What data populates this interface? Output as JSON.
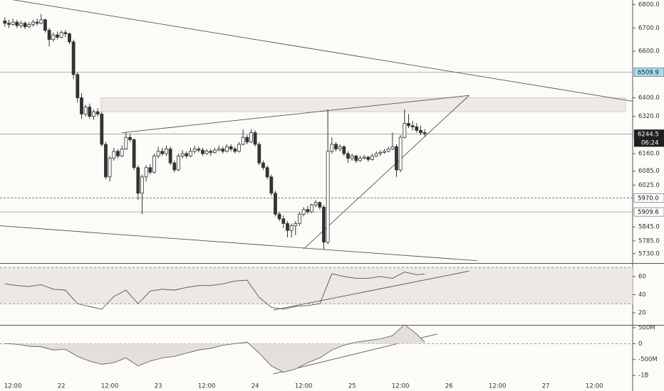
{
  "chart_data": [
    {
      "type": "candlestick",
      "xlim": [
        -3.2,
        153.5
      ],
      "xticks": [
        {
          "value": 0,
          "label": "12:00"
        },
        {
          "value": 12,
          "label": "22"
        },
        {
          "value": 24,
          "label": "12:00"
        },
        {
          "value": 36,
          "label": "23"
        },
        {
          "value": 48,
          "label": "12:00"
        },
        {
          "value": 60,
          "label": "24"
        },
        {
          "value": 72,
          "label": "12:00"
        },
        {
          "value": 84,
          "label": "25"
        },
        {
          "value": 96,
          "label": "12:00"
        },
        {
          "value": 108,
          "label": "26"
        },
        {
          "value": 120,
          "label": "12:00"
        },
        {
          "value": 132,
          "label": "27"
        },
        {
          "value": 144,
          "label": "12:00"
        }
      ],
      "ylim": [
        5690,
        6820
      ],
      "yticks": [
        {
          "value": 6800,
          "label": "6800.0"
        },
        {
          "value": 6700,
          "label": "6700.0"
        },
        {
          "value": 6600,
          "label": "6600.0"
        },
        {
          "value": 6400,
          "label": "6400.0"
        },
        {
          "value": 6320,
          "label": "6320.0"
        },
        {
          "value": 6160,
          "label": "6160.0"
        },
        {
          "value": 6085,
          "label": "6085.0"
        },
        {
          "value": 6025,
          "label": "6025.0"
        },
        {
          "value": 5845,
          "label": "5845.0"
        },
        {
          "value": 5785,
          "label": "5785.0"
        },
        {
          "value": 5730,
          "label": "5730.0"
        }
      ],
      "up_color": "#ffffff",
      "down_color": "#333333",
      "x": [
        -2,
        -1,
        0,
        1,
        2,
        3,
        4,
        5,
        6,
        7,
        8,
        9,
        10,
        11,
        12,
        13,
        14,
        15,
        16,
        17,
        18,
        19,
        20,
        21,
        22,
        23,
        24,
        25,
        26,
        27,
        28,
        29,
        30,
        31,
        32,
        33,
        34,
        35,
        36,
        37,
        38,
        39,
        40,
        41,
        42,
        43,
        44,
        45,
        46,
        47,
        48,
        49,
        50,
        51,
        52,
        53,
        54,
        55,
        56,
        57,
        58,
        59,
        60,
        61,
        62,
        63,
        64,
        65,
        66,
        67,
        68,
        69,
        70,
        71,
        72,
        73,
        74,
        75,
        76,
        77,
        78,
        79,
        80,
        81,
        82,
        83,
        84,
        85,
        86,
        87,
        88,
        89,
        90,
        91,
        92,
        93,
        94,
        95,
        96,
        97,
        98,
        99,
        100,
        101,
        102
      ],
      "ohlc": [
        [
          6730,
          6745,
          6705,
          6720
        ],
        [
          6720,
          6735,
          6700,
          6715
        ],
        [
          6715,
          6740,
          6710,
          6725
        ],
        [
          6725,
          6735,
          6700,
          6710
        ],
        [
          6710,
          6730,
          6700,
          6720
        ],
        [
          6720,
          6728,
          6695,
          6705
        ],
        [
          6705,
          6725,
          6700,
          6715
        ],
        [
          6715,
          6735,
          6705,
          6725
        ],
        [
          6725,
          6740,
          6710,
          6720
        ],
        [
          6720,
          6760,
          6715,
          6735
        ],
        [
          6735,
          6740,
          6680,
          6690
        ],
        [
          6690,
          6700,
          6620,
          6650
        ],
        [
          6650,
          6680,
          6640,
          6670
        ],
        [
          6670,
          6685,
          6650,
          6660
        ],
        [
          6660,
          6690,
          6655,
          6680
        ],
        [
          6680,
          6690,
          6660,
          6675
        ],
        [
          6675,
          6680,
          6630,
          6640
        ],
        [
          6640,
          6650,
          6480,
          6500
        ],
        [
          6500,
          6510,
          6380,
          6400
        ],
        [
          6400,
          6420,
          6310,
          6330
        ],
        [
          6330,
          6370,
          6320,
          6360
        ],
        [
          6360,
          6375,
          6310,
          6320
        ],
        [
          6320,
          6350,
          6305,
          6340
        ],
        [
          6340,
          6355,
          6320,
          6330
        ],
        [
          6330,
          6340,
          6190,
          6200
        ],
        [
          6200,
          6210,
          6050,
          6060
        ],
        [
          6060,
          6150,
          6040,
          6140
        ],
        [
          6140,
          6185,
          6130,
          6170
        ],
        [
          6170,
          6180,
          6140,
          6150
        ],
        [
          6150,
          6195,
          6145,
          6180
        ],
        [
          6180,
          6250,
          6175,
          6230
        ],
        [
          6230,
          6245,
          6210,
          6220
        ],
        [
          6220,
          6225,
          6090,
          6100
        ],
        [
          6100,
          6110,
          5960,
          5990
        ],
        [
          5990,
          6070,
          5900,
          6060
        ],
        [
          6060,
          6110,
          6040,
          6100
        ],
        [
          6100,
          6115,
          6070,
          6080
        ],
        [
          6080,
          6160,
          6075,
          6150
        ],
        [
          6150,
          6190,
          6140,
          6170
        ],
        [
          6170,
          6185,
          6150,
          6160
        ],
        [
          6160,
          6195,
          6150,
          6180
        ],
        [
          6180,
          6190,
          6110,
          6120
        ],
        [
          6120,
          6130,
          6080,
          6090
        ],
        [
          6090,
          6160,
          6085,
          6150
        ],
        [
          6150,
          6175,
          6140,
          6160
        ],
        [
          6160,
          6170,
          6140,
          6150
        ],
        [
          6150,
          6185,
          6145,
          6170
        ],
        [
          6170,
          6195,
          6160,
          6180
        ],
        [
          6180,
          6190,
          6165,
          6175
        ],
        [
          6175,
          6185,
          6150,
          6160
        ],
        [
          6160,
          6180,
          6155,
          6170
        ],
        [
          6170,
          6180,
          6150,
          6165
        ],
        [
          6165,
          6185,
          6160,
          6175
        ],
        [
          6175,
          6195,
          6170,
          6180
        ],
        [
          6180,
          6190,
          6160,
          6170
        ],
        [
          6170,
          6200,
          6165,
          6190
        ],
        [
          6190,
          6200,
          6170,
          6180
        ],
        [
          6180,
          6190,
          6160,
          6170
        ],
        [
          6170,
          6210,
          6165,
          6200
        ],
        [
          6200,
          6265,
          6195,
          6230
        ],
        [
          6230,
          6240,
          6200,
          6210
        ],
        [
          6210,
          6265,
          6205,
          6250
        ],
        [
          6250,
          6260,
          6190,
          6200
        ],
        [
          6200,
          6210,
          6110,
          6120
        ],
        [
          6120,
          6130,
          6090,
          6100
        ],
        [
          6100,
          6110,
          6050,
          6060
        ],
        [
          6060,
          6070,
          5980,
          5990
        ],
        [
          5990,
          6000,
          5890,
          5900
        ],
        [
          5900,
          5910,
          5870,
          5880
        ],
        [
          5880,
          5895,
          5840,
          5860
        ],
        [
          5860,
          5870,
          5800,
          5830
        ],
        [
          5830,
          5860,
          5800,
          5850
        ],
        [
          5850,
          5870,
          5810,
          5860
        ],
        [
          5860,
          5910,
          5850,
          5900
        ],
        [
          5900,
          5930,
          5890,
          5920
        ],
        [
          5920,
          5935,
          5900,
          5910
        ],
        [
          5910,
          5945,
          5905,
          5940
        ],
        [
          5940,
          5960,
          5930,
          5950
        ],
        [
          5950,
          5955,
          5920,
          5930
        ],
        [
          5930,
          5940,
          5750,
          5780
        ],
        [
          5780,
          6350,
          5770,
          6170
        ],
        [
          6170,
          6230,
          6160,
          6200
        ],
        [
          6200,
          6210,
          6170,
          6180
        ],
        [
          6180,
          6200,
          6170,
          6190
        ],
        [
          6190,
          6195,
          6150,
          6160
        ],
        [
          6160,
          6170,
          6120,
          6140
        ],
        [
          6140,
          6160,
          6130,
          6150
        ],
        [
          6150,
          6155,
          6120,
          6130
        ],
        [
          6130,
          6150,
          6125,
          6140
        ],
        [
          6140,
          6155,
          6135,
          6145
        ],
        [
          6145,
          6150,
          6125,
          6135
        ],
        [
          6135,
          6160,
          6130,
          6150
        ],
        [
          6150,
          6170,
          6145,
          6160
        ],
        [
          6160,
          6175,
          6150,
          6165
        ],
        [
          6165,
          6180,
          6160,
          6170
        ],
        [
          6170,
          6190,
          6165,
          6180
        ],
        [
          6180,
          6250,
          6175,
          6190
        ],
        [
          6190,
          6200,
          6060,
          6090
        ],
        [
          6090,
          6240,
          6080,
          6230
        ],
        [
          6230,
          6350,
          6225,
          6290
        ],
        [
          6290,
          6330,
          6270,
          6280
        ],
        [
          6280,
          6300,
          6260,
          6275
        ],
        [
          6275,
          6290,
          6250,
          6260
        ],
        [
          6260,
          6280,
          6240,
          6250
        ],
        [
          6250,
          6265,
          6235,
          6245
        ]
      ],
      "zone": [
        6340,
        6400
      ],
      "trendlines": [
        {
          "x": [
            -3.2,
            153.5
          ],
          "y": [
            6830,
            6385
          ]
        },
        {
          "x": [
            27,
            113
          ],
          "y": [
            6250,
            6410
          ]
        },
        {
          "x": [
            -3.2,
            115
          ],
          "y": [
            5850,
            5700
          ]
        },
        {
          "x": [
            72,
            113
          ],
          "y": [
            5750,
            6410
          ]
        }
      ],
      "price_lines": [
        {
          "value": 6509.9,
          "label_bg": "#a8dcef",
          "label_fg": "#222222"
        },
        {
          "value": 6244.5,
          "label_bg": "#1e1e1e",
          "label_fg": "#ffffff",
          "countdown": "06:24"
        },
        {
          "value": 5970,
          "label": "5970.0",
          "label_bg": "#ffffff",
          "label_fg": "#111111",
          "dashed": true
        },
        {
          "value": 5909.6,
          "label_bg": "#ffffff",
          "label_fg": "#111111"
        }
      ]
    },
    {
      "type": "line",
      "ylim": [
        6.7,
        73.3
      ],
      "yticks": [
        60,
        40,
        20
      ],
      "bands": [
        30,
        70
      ],
      "color": "#555555",
      "x": [
        -2,
        1,
        4,
        7,
        10,
        13,
        16,
        19,
        22,
        25,
        28,
        31,
        34,
        37,
        40,
        43,
        46,
        49,
        52,
        55,
        58,
        61,
        64,
        67,
        70,
        73,
        76,
        79,
        82,
        85,
        88,
        91,
        94,
        97,
        100,
        102
      ],
      "values": [
        52,
        50,
        49,
        51,
        46,
        45,
        30,
        27,
        24,
        38,
        45,
        30,
        44,
        46,
        45,
        48,
        50,
        50,
        52,
        55,
        56,
        37,
        26,
        24,
        27,
        28,
        30,
        63,
        60,
        58,
        58,
        60,
        58,
        65,
        62,
        63
      ],
      "trendlines": [
        {
          "x": [
            64.5,
            113
          ],
          "y": [
            23,
            66
          ]
        }
      ]
    },
    {
      "type": "area",
      "ylim": [
        -1444000000,
        544000000
      ],
      "yticks": [
        {
          "value": 500000000,
          "label": "500M"
        },
        0,
        {
          "value": -500000000,
          "label": "-500M"
        },
        {
          "value": -1000000000,
          "label": "-1B"
        }
      ],
      "baseline": 0,
      "color": "#555555",
      "x": [
        -2,
        1,
        4,
        7,
        10,
        13,
        16,
        19,
        22,
        25,
        28,
        31,
        34,
        37,
        40,
        43,
        46,
        49,
        52,
        55,
        58,
        61,
        64,
        67,
        70,
        73,
        76,
        79,
        82,
        85,
        88,
        91,
        94,
        97,
        100,
        102
      ],
      "values": [
        0,
        -20000000,
        -80000000,
        -100000000,
        -200000000,
        -180000000,
        -400000000,
        -550000000,
        -650000000,
        -600000000,
        -450000000,
        -700000000,
        -550000000,
        -450000000,
        -400000000,
        -300000000,
        -200000000,
        -150000000,
        -50000000,
        0,
        50000000,
        -300000000,
        -700000000,
        -900000000,
        -800000000,
        -600000000,
        -450000000,
        -200000000,
        -50000000,
        50000000,
        100000000,
        150000000,
        250000000,
        600000000,
        300000000,
        50000000
      ],
      "trendlines": [
        {
          "x": [
            64.5,
            105
          ],
          "y": [
            -950000000,
            300000000
          ]
        }
      ]
    }
  ]
}
